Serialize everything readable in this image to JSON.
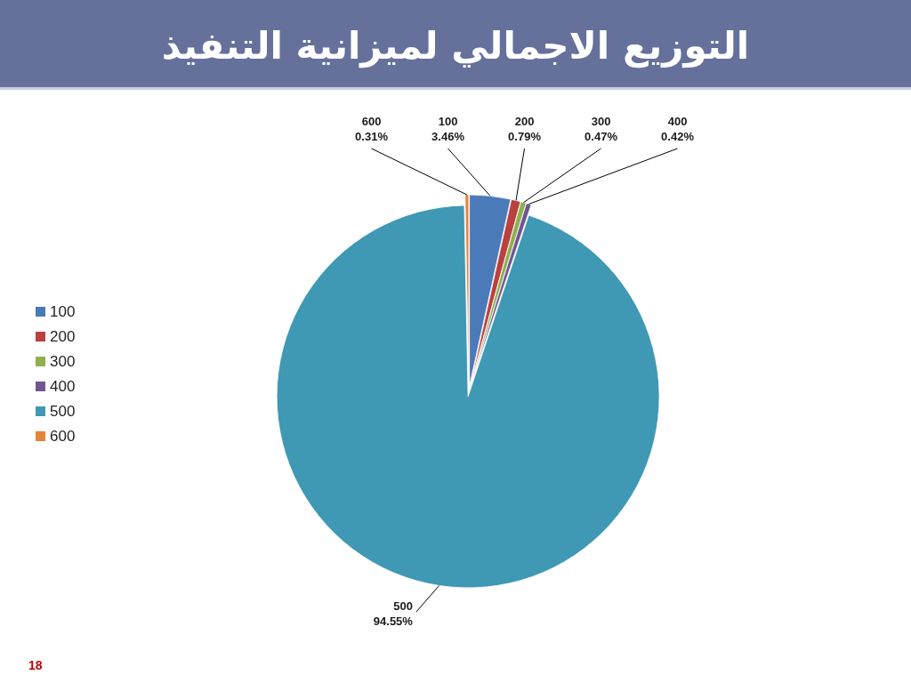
{
  "chart_data": {
    "type": "pie",
    "title": "التوزيع الاجمالي لميزانية التنفيذ",
    "categories": [
      "100",
      "200",
      "300",
      "400",
      "500",
      "600"
    ],
    "values": [
      3.46,
      0.79,
      0.47,
      0.42,
      94.55,
      0.31
    ],
    "value_labels": [
      "3.46%",
      "0.79%",
      "0.47%",
      "0.42%",
      "94.55%",
      "0.31%"
    ],
    "colors": [
      "#4a7ab8",
      "#b9413f",
      "#8fb04f",
      "#6f5591",
      "#3f98b4",
      "#e8843a"
    ],
    "legend": "left",
    "annotations": [
      "18"
    ]
  }
}
